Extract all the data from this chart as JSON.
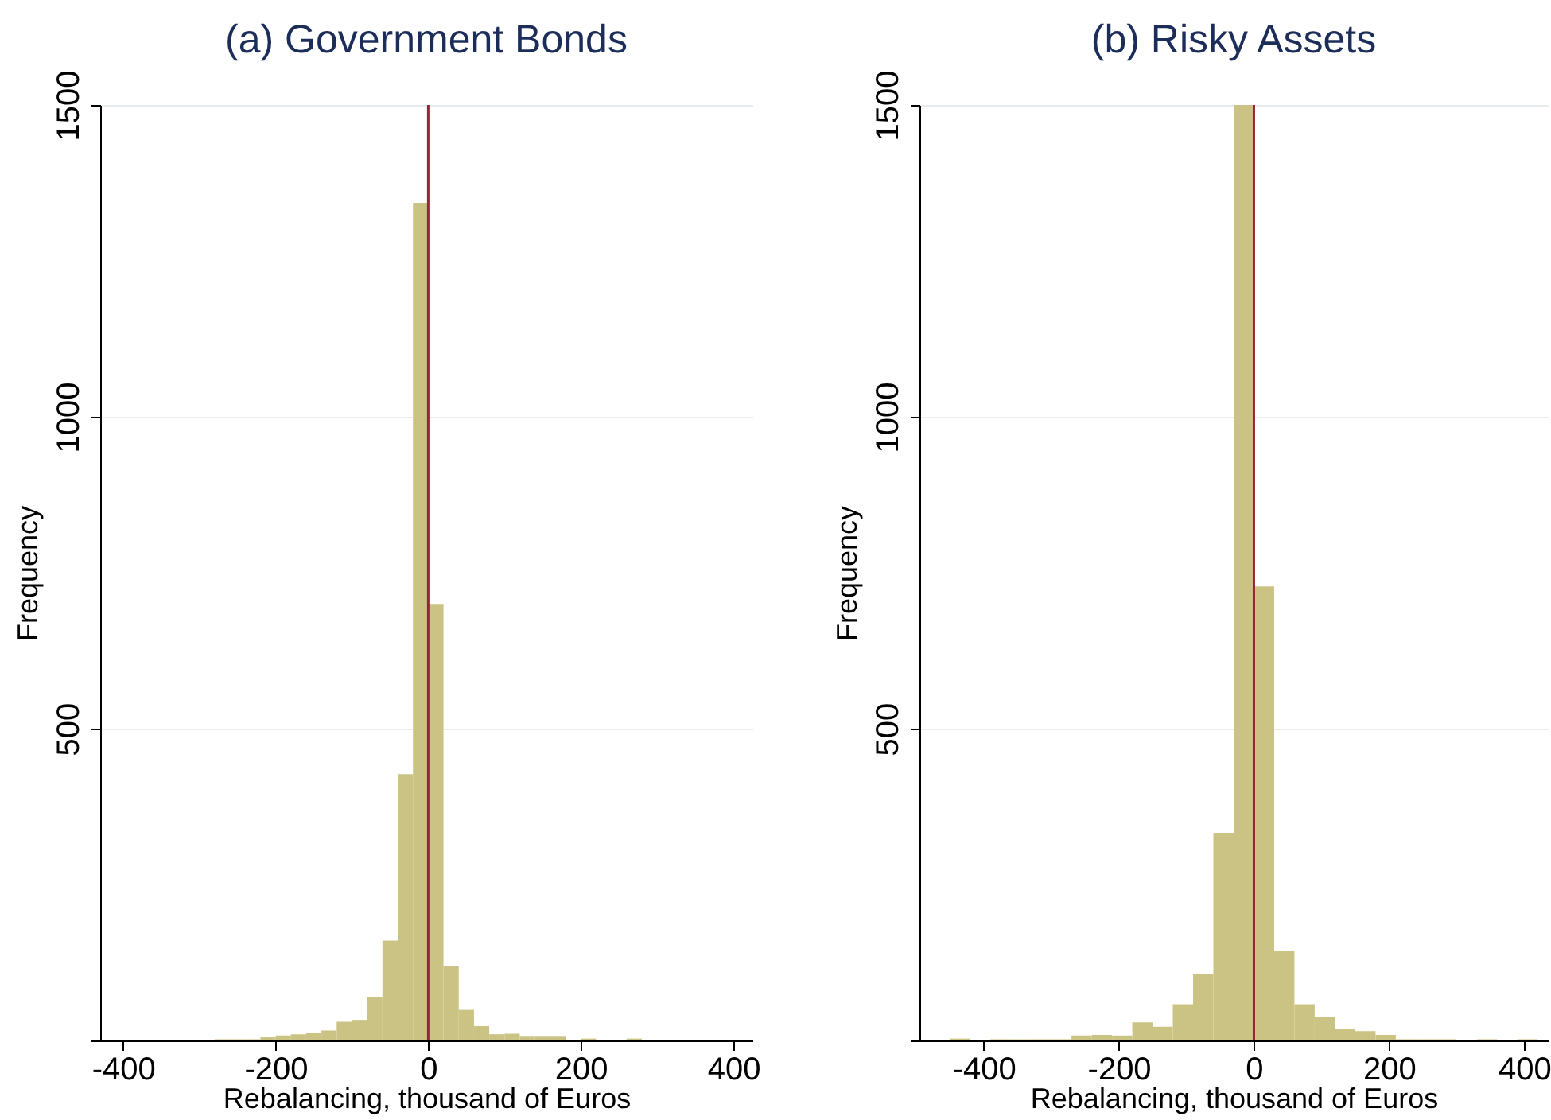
{
  "chart_data": [
    {
      "type": "histogram",
      "title": "(a) Government Bonds",
      "xlabel": "Rebalancing, thousand of Euros",
      "ylabel": "Frequency",
      "bins": [
        -280,
        -260,
        -240,
        -220,
        -200,
        -180,
        -160,
        -140,
        -120,
        -100,
        -80,
        -60,
        -40,
        -20,
        0,
        20,
        40,
        60,
        80,
        100,
        120,
        140,
        160,
        180,
        200,
        220,
        240,
        260,
        280
      ],
      "values": [
        2,
        2,
        2,
        5,
        8,
        10,
        12,
        16,
        30,
        33,
        70,
        160,
        427,
        1343,
        700,
        120,
        49,
        23,
        10,
        11,
        6,
        6,
        6,
        0,
        3,
        0,
        0,
        3
      ],
      "color": "#cbc384",
      "xlim": [
        -430,
        425
      ],
      "xticks": [
        -400,
        -200,
        0,
        200,
        400
      ],
      "ylim": [
        0,
        1500
      ],
      "yticks": [
        {
          "value": 0,
          "label": null
        },
        500,
        1000,
        1500
      ],
      "grid": "y",
      "ref_lines": [
        {
          "axis": "x",
          "value": 0,
          "color": "#9b2335"
        }
      ]
    },
    {
      "type": "histogram",
      "title": "(b) Risky Assets",
      "xlabel": "Rebalancing, thousand of Euros",
      "ylabel": "Frequency",
      "bins": [
        -450,
        -420,
        -390,
        -360,
        -330,
        -300,
        -270,
        -240,
        -210,
        -180,
        -150,
        -120,
        -90,
        -60,
        -30,
        0,
        30,
        60,
        90,
        120,
        150,
        180,
        210,
        240,
        270,
        300,
        330,
        360,
        390,
        420
      ],
      "values": [
        3,
        0,
        2,
        2,
        2,
        2,
        8,
        9,
        8,
        29,
        22,
        58,
        107,
        333,
        1500,
        728,
        143,
        58,
        37,
        19,
        15,
        9,
        2,
        2,
        2,
        0,
        2,
        0,
        2
      ],
      "color": "#cbc384",
      "xlim": [
        -495,
        435
      ],
      "xticks": [
        -400,
        -200,
        0,
        200,
        400
      ],
      "ylim": [
        0,
        1500
      ],
      "yticks": [
        {
          "value": 0,
          "label": null
        },
        500,
        1000,
        1500
      ],
      "grid": "y",
      "ref_lines": [
        {
          "axis": "x",
          "value": 0,
          "color": "#9b2335"
        }
      ]
    }
  ]
}
